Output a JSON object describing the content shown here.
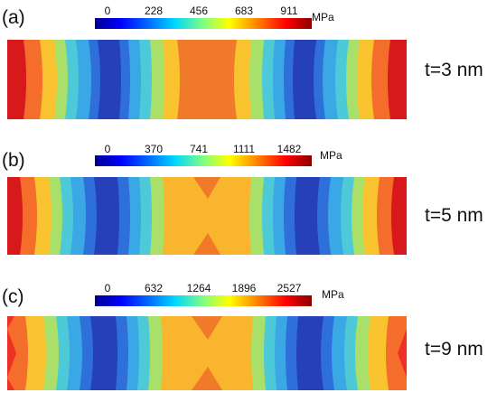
{
  "panels": [
    {
      "label": "(a)",
      "ticks": [
        "0",
        "228",
        "456",
        "683",
        "911"
      ],
      "unit": "MPa",
      "thickness": "t=3 nm"
    },
    {
      "label": "(b)",
      "ticks": [
        "0",
        "370",
        "741",
        "1111",
        "1482"
      ],
      "unit": "MPa",
      "thickness": "t=5 nm"
    },
    {
      "label": "(c)",
      "ticks": [
        "0",
        "632",
        "1264",
        "1896",
        "2527"
      ],
      "unit": "MPa",
      "thickness": "t=9 nm"
    }
  ],
  "colors": {
    "dark_red": "#d7191c",
    "red": "#ee3124",
    "orange_red": "#f46d2b",
    "orange": "#f8a033",
    "yellow_orange": "#f9c330",
    "yellow": "#f2ec2c",
    "green": "#a8e06a",
    "cyan": "#4dc9d8",
    "sky": "#39a8e5",
    "blue": "#2e6fd9",
    "dark_blue": "#2540b8",
    "center_a": "#f07a2a",
    "center_bc": "#f9b52d",
    "x_pattern": "#f07a2a"
  }
}
